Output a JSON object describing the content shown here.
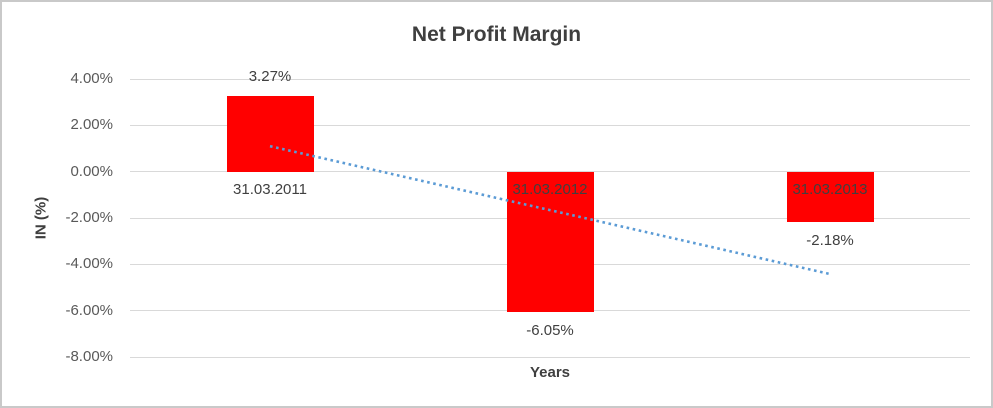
{
  "chart_data": {
    "type": "bar",
    "title": "Net Profit Margin",
    "xlabel": "Years",
    "ylabel": "IN (%)",
    "categories": [
      "31.03.2011",
      "31.03.2012",
      "31.03.2013"
    ],
    "values": [
      3.27,
      -6.05,
      -2.18
    ],
    "data_labels": [
      "3.27%",
      "-6.05%",
      "-2.18%"
    ],
    "y_tick_labels": [
      "4.00%",
      "2.00%",
      "0.00%",
      "-2.00%",
      "-4.00%",
      "-6.00%",
      "-8.00%"
    ],
    "y_tick_values": [
      4,
      2,
      0,
      -2,
      -4,
      -6,
      -8
    ],
    "ylim": [
      -8,
      4
    ],
    "grid": true,
    "legend": "none",
    "bar_color": "#ff0000",
    "label_color": "#404040",
    "tick_color": "#595959",
    "gridline_color": "#d9d9d9",
    "trendline": {
      "type": "linear",
      "style": "dotted",
      "color": "#5b9bd5",
      "start_value": 1.1,
      "end_value": -4.42
    }
  }
}
